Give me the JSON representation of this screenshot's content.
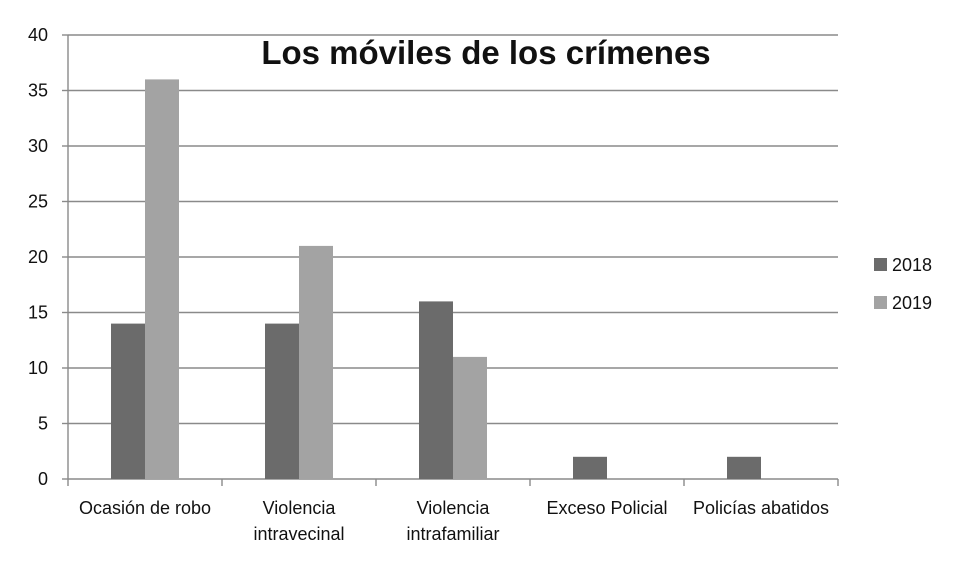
{
  "chart_data": {
    "type": "bar",
    "title": "Los móviles de los crímenes",
    "xlabel": "",
    "ylabel": "",
    "ylim": [
      0,
      40
    ],
    "yticks": [
      0,
      5,
      10,
      15,
      20,
      25,
      30,
      35,
      40
    ],
    "grid": true,
    "legend_position": "right",
    "categories": [
      [
        "Ocasión de robo"
      ],
      [
        "Violencia",
        "intravecinal"
      ],
      [
        "Violencia",
        "intrafamiliar"
      ],
      [
        "Exceso Policial"
      ],
      [
        "Policías abatidos"
      ]
    ],
    "series": [
      {
        "name": "2018",
        "color": "#6b6b6b",
        "values": [
          14,
          14,
          16,
          2,
          2
        ]
      },
      {
        "name": "2019",
        "color": "#a3a3a3",
        "values": [
          36,
          21,
          11,
          0,
          0
        ]
      }
    ]
  }
}
